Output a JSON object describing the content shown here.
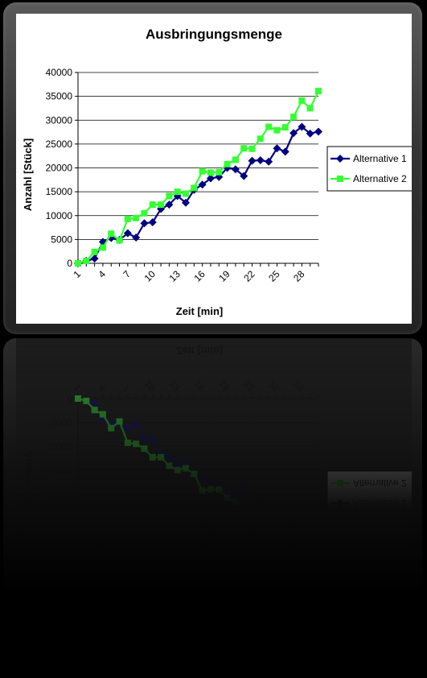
{
  "chart_data": {
    "type": "line",
    "title": "Ausbringungsmenge",
    "xlabel": "Zeit [min]",
    "ylabel": "Anzahl [Stück]",
    "ylim": [
      0,
      40000
    ],
    "yticks": [
      0,
      5000,
      10000,
      15000,
      20000,
      25000,
      30000,
      35000,
      40000
    ],
    "xlim": [
      1,
      30
    ],
    "xticks": [
      1,
      4,
      7,
      10,
      13,
      16,
      19,
      22,
      25,
      28
    ],
    "grid": true,
    "legend": "right",
    "x": [
      1,
      2,
      3,
      4,
      5,
      6,
      7,
      8,
      9,
      10,
      11,
      12,
      13,
      14,
      15,
      16,
      17,
      18,
      19,
      20,
      21,
      22,
      23,
      24,
      25,
      26,
      27,
      28,
      29,
      30
    ],
    "series": [
      {
        "name": "Alternative 1",
        "color": "#000080",
        "marker": "diamond",
        "values": [
          0,
          500,
          1000,
          4500,
          5300,
          4900,
          6300,
          5400,
          8400,
          8600,
          11400,
          12300,
          14100,
          12700,
          15400,
          16500,
          17800,
          18100,
          20000,
          19700,
          18300,
          21500,
          21600,
          21300,
          24100,
          23400,
          27300,
          28600,
          27200,
          27600
        ]
      },
      {
        "name": "Alternative 2",
        "color": "#33ff33",
        "marker": "square",
        "values": [
          0,
          500,
          2400,
          3300,
          6200,
          4800,
          9300,
          9500,
          10500,
          12300,
          12300,
          14100,
          15000,
          14600,
          15800,
          19300,
          19000,
          19100,
          20800,
          21700,
          24100,
          24000,
          26100,
          28600,
          27900,
          28500,
          30700,
          34100,
          32500,
          36100
        ]
      }
    ]
  }
}
